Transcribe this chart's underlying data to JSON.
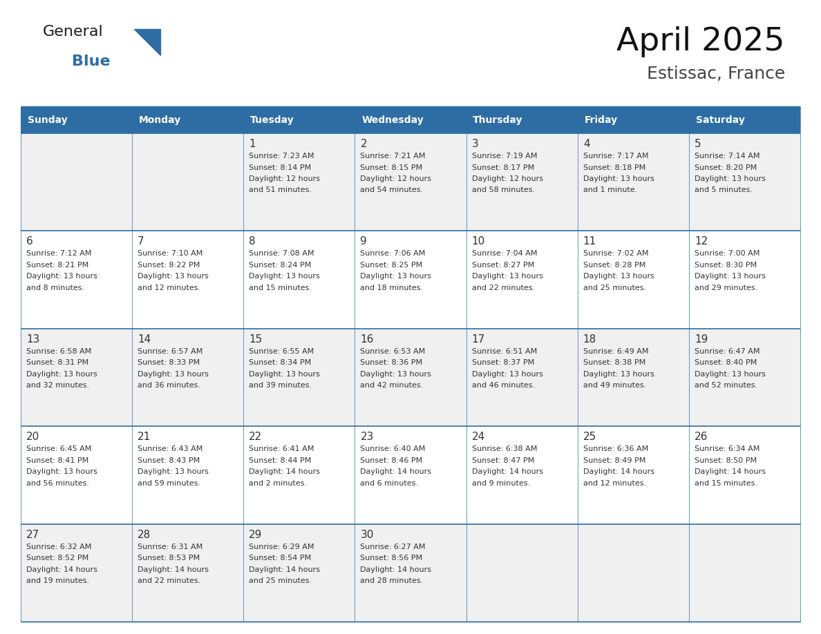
{
  "title": "April 2025",
  "subtitle": "Estissac, France",
  "header_bg": "#2E6DA4",
  "header_text_color": "#FFFFFF",
  "cell_bg_even": "#F0F0F0",
  "cell_bg_odd": "#FFFFFF",
  "border_color": "#2E6DA4",
  "text_color": "#333333",
  "logo_general_color": "#1a1a1a",
  "logo_blue_color": "#2E6DA4",
  "days_of_week": [
    "Sunday",
    "Monday",
    "Tuesday",
    "Wednesday",
    "Thursday",
    "Friday",
    "Saturday"
  ],
  "weeks": [
    [
      {
        "day": null,
        "info": null
      },
      {
        "day": null,
        "info": null
      },
      {
        "day": 1,
        "info": "Sunrise: 7:23 AM\nSunset: 8:14 PM\nDaylight: 12 hours\nand 51 minutes."
      },
      {
        "day": 2,
        "info": "Sunrise: 7:21 AM\nSunset: 8:15 PM\nDaylight: 12 hours\nand 54 minutes."
      },
      {
        "day": 3,
        "info": "Sunrise: 7:19 AM\nSunset: 8:17 PM\nDaylight: 12 hours\nand 58 minutes."
      },
      {
        "day": 4,
        "info": "Sunrise: 7:17 AM\nSunset: 8:18 PM\nDaylight: 13 hours\nand 1 minute."
      },
      {
        "day": 5,
        "info": "Sunrise: 7:14 AM\nSunset: 8:20 PM\nDaylight: 13 hours\nand 5 minutes."
      }
    ],
    [
      {
        "day": 6,
        "info": "Sunrise: 7:12 AM\nSunset: 8:21 PM\nDaylight: 13 hours\nand 8 minutes."
      },
      {
        "day": 7,
        "info": "Sunrise: 7:10 AM\nSunset: 8:22 PM\nDaylight: 13 hours\nand 12 minutes."
      },
      {
        "day": 8,
        "info": "Sunrise: 7:08 AM\nSunset: 8:24 PM\nDaylight: 13 hours\nand 15 minutes."
      },
      {
        "day": 9,
        "info": "Sunrise: 7:06 AM\nSunset: 8:25 PM\nDaylight: 13 hours\nand 18 minutes."
      },
      {
        "day": 10,
        "info": "Sunrise: 7:04 AM\nSunset: 8:27 PM\nDaylight: 13 hours\nand 22 minutes."
      },
      {
        "day": 11,
        "info": "Sunrise: 7:02 AM\nSunset: 8:28 PM\nDaylight: 13 hours\nand 25 minutes."
      },
      {
        "day": 12,
        "info": "Sunrise: 7:00 AM\nSunset: 8:30 PM\nDaylight: 13 hours\nand 29 minutes."
      }
    ],
    [
      {
        "day": 13,
        "info": "Sunrise: 6:58 AM\nSunset: 8:31 PM\nDaylight: 13 hours\nand 32 minutes."
      },
      {
        "day": 14,
        "info": "Sunrise: 6:57 AM\nSunset: 8:33 PM\nDaylight: 13 hours\nand 36 minutes."
      },
      {
        "day": 15,
        "info": "Sunrise: 6:55 AM\nSunset: 8:34 PM\nDaylight: 13 hours\nand 39 minutes."
      },
      {
        "day": 16,
        "info": "Sunrise: 6:53 AM\nSunset: 8:36 PM\nDaylight: 13 hours\nand 42 minutes."
      },
      {
        "day": 17,
        "info": "Sunrise: 6:51 AM\nSunset: 8:37 PM\nDaylight: 13 hours\nand 46 minutes."
      },
      {
        "day": 18,
        "info": "Sunrise: 6:49 AM\nSunset: 8:38 PM\nDaylight: 13 hours\nand 49 minutes."
      },
      {
        "day": 19,
        "info": "Sunrise: 6:47 AM\nSunset: 8:40 PM\nDaylight: 13 hours\nand 52 minutes."
      }
    ],
    [
      {
        "day": 20,
        "info": "Sunrise: 6:45 AM\nSunset: 8:41 PM\nDaylight: 13 hours\nand 56 minutes."
      },
      {
        "day": 21,
        "info": "Sunrise: 6:43 AM\nSunset: 8:43 PM\nDaylight: 13 hours\nand 59 minutes."
      },
      {
        "day": 22,
        "info": "Sunrise: 6:41 AM\nSunset: 8:44 PM\nDaylight: 14 hours\nand 2 minutes."
      },
      {
        "day": 23,
        "info": "Sunrise: 6:40 AM\nSunset: 8:46 PM\nDaylight: 14 hours\nand 6 minutes."
      },
      {
        "day": 24,
        "info": "Sunrise: 6:38 AM\nSunset: 8:47 PM\nDaylight: 14 hours\nand 9 minutes."
      },
      {
        "day": 25,
        "info": "Sunrise: 6:36 AM\nSunset: 8:49 PM\nDaylight: 14 hours\nand 12 minutes."
      },
      {
        "day": 26,
        "info": "Sunrise: 6:34 AM\nSunset: 8:50 PM\nDaylight: 14 hours\nand 15 minutes."
      }
    ],
    [
      {
        "day": 27,
        "info": "Sunrise: 6:32 AM\nSunset: 8:52 PM\nDaylight: 14 hours\nand 19 minutes."
      },
      {
        "day": 28,
        "info": "Sunrise: 6:31 AM\nSunset: 8:53 PM\nDaylight: 14 hours\nand 22 minutes."
      },
      {
        "day": 29,
        "info": "Sunrise: 6:29 AM\nSunset: 8:54 PM\nDaylight: 14 hours\nand 25 minutes."
      },
      {
        "day": 30,
        "info": "Sunrise: 6:27 AM\nSunset: 8:56 PM\nDaylight: 14 hours\nand 28 minutes."
      },
      {
        "day": null,
        "info": null
      },
      {
        "day": null,
        "info": null
      },
      {
        "day": null,
        "info": null
      }
    ]
  ]
}
